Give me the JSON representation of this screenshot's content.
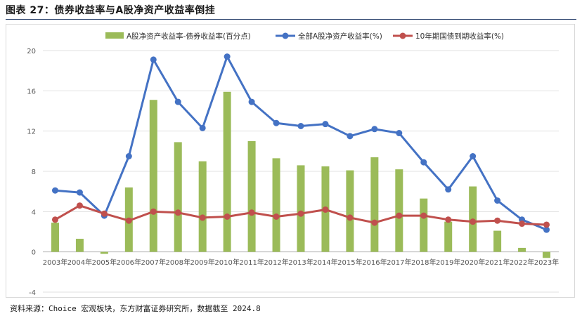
{
  "title": "图表 27：债券收益率与A股净资产收益率倒挂",
  "source": "资料来源：Choice 宏观板块，东方财富证券研究所，数据截至 2024.8",
  "colors": {
    "bar": "#9bbb59",
    "line_roe": "#4472c4",
    "line_bond": "#c0504d",
    "grid": "#e0e0e0",
    "rule": "#1f3864"
  },
  "chart_data": {
    "type": "bar+line",
    "categories": [
      "2003年",
      "2004年",
      "2005年",
      "2006年",
      "2007年",
      "2008年",
      "2009年",
      "2010年",
      "2011年",
      "2012年",
      "2013年",
      "2014年",
      "2015年",
      "2016年",
      "2017年",
      "2018年",
      "2019年",
      "2020年",
      "2021年",
      "2022年",
      "2023年"
    ],
    "ylim": [
      -4,
      20
    ],
    "yticks": [
      "-4",
      "0",
      "4",
      "8",
      "12",
      "16",
      "20"
    ],
    "grid": true,
    "legend_position": "top",
    "series": [
      {
        "name": "A股净资产收益率-债券收益率(百分点)",
        "type": "bar",
        "values": [
          2.9,
          1.3,
          -0.2,
          6.4,
          15.1,
          10.9,
          9.0,
          15.9,
          11.0,
          9.3,
          8.6,
          8.5,
          8.1,
          9.4,
          8.2,
          5.3,
          3.0,
          6.5,
          2.1,
          0.4,
          -0.6
        ]
      },
      {
        "name": "全部A股净资产收益率(%)",
        "type": "line",
        "values": [
          6.1,
          5.9,
          3.6,
          9.5,
          19.1,
          14.9,
          12.3,
          19.4,
          14.9,
          12.8,
          12.5,
          12.7,
          11.5,
          12.2,
          11.8,
          8.9,
          6.2,
          9.5,
          5.1,
          3.2,
          2.2
        ]
      },
      {
        "name": "10年期国债到期收益率(%)",
        "type": "line",
        "values": [
          3.2,
          4.6,
          3.8,
          3.1,
          4.0,
          3.9,
          3.4,
          3.5,
          3.9,
          3.5,
          3.8,
          4.2,
          3.4,
          2.9,
          3.6,
          3.6,
          3.2,
          3.0,
          3.1,
          2.8,
          2.7
        ]
      }
    ]
  }
}
